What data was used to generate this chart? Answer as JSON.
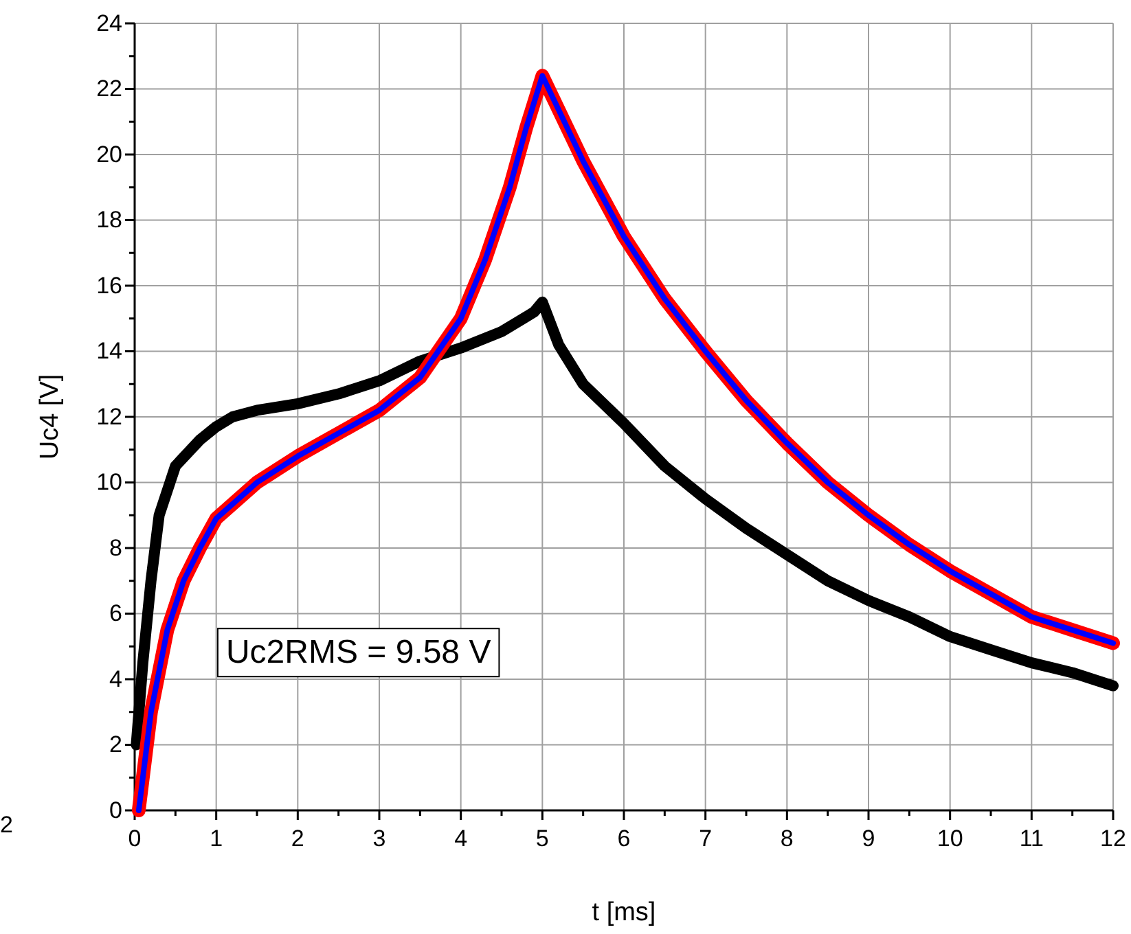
{
  "chart_data": {
    "type": "line",
    "xlabel": "t [ms]",
    "ylabel": "Uc4 [V]",
    "annotations": [
      "Uc2RMS = 9.58 V",
      "2"
    ],
    "xlim": [
      0,
      12
    ],
    "ylim": [
      0,
      24
    ],
    "xticks": [
      0,
      {
        "value": 0.5,
        "label": null
      },
      1,
      {
        "value": 1.5,
        "label": null
      },
      2,
      {
        "value": 2.5,
        "label": null
      },
      3,
      {
        "value": 3.5,
        "label": null
      },
      4,
      {
        "value": 4.5,
        "label": null
      },
      5,
      {
        "value": 5.5,
        "label": null
      },
      6,
      {
        "value": 6.5,
        "label": null
      },
      7,
      {
        "value": 7.5,
        "label": null
      },
      8,
      {
        "value": 8.5,
        "label": null
      },
      9,
      {
        "value": 9.5,
        "label": null
      },
      10,
      {
        "value": 10.5,
        "label": null
      },
      11,
      {
        "value": 11.5,
        "label": null
      },
      12
    ],
    "yticks": [
      0,
      {
        "value": 1,
        "label": null
      },
      2,
      {
        "value": 3,
        "label": null
      },
      4,
      {
        "value": 5,
        "label": null
      },
      6,
      {
        "value": 7,
        "label": null
      },
      8,
      {
        "value": 9,
        "label": null
      },
      10,
      {
        "value": 11,
        "label": null
      },
      12,
      {
        "value": 13,
        "label": null
      },
      14,
      {
        "value": 15,
        "label": null
      },
      16,
      {
        "value": 17,
        "label": null
      },
      18,
      {
        "value": 19,
        "label": null
      },
      20,
      {
        "value": 21,
        "label": null
      },
      22,
      {
        "value": 23,
        "label": null
      },
      24
    ],
    "grid": true,
    "marker": "none",
    "line_style": "solid",
    "series": [
      {
        "color": "#000000",
        "x": [
          0.02,
          0.1,
          0.2,
          0.3,
          0.5,
          0.8,
          1,
          1.2,
          1.5,
          2,
          2.5,
          3,
          3.5,
          4,
          4.5,
          4.9,
          5,
          5.2,
          5.5,
          6,
          6.5,
          7,
          7.5,
          8,
          8.5,
          9,
          9.5,
          10,
          10.5,
          11,
          11.5,
          12
        ],
        "values": [
          2,
          4.5,
          7,
          9,
          10.5,
          11.3,
          11.7,
          12,
          12.2,
          12.4,
          12.7,
          13.1,
          13.7,
          14.1,
          14.6,
          15.2,
          15.5,
          14.2,
          13,
          11.8,
          10.5,
          9.5,
          8.6,
          7.8,
          7,
          6.4,
          5.9,
          5.3,
          4.9,
          4.5,
          4.2,
          3.8
        ]
      },
      {
        "color": "#ff0000",
        "x": [
          0.05,
          0.2,
          0.4,
          0.6,
          0.8,
          1,
          1.5,
          2,
          2.5,
          3,
          3.5,
          4,
          4.3,
          4.6,
          4.8,
          5,
          5.5,
          6,
          6.5,
          7,
          7.5,
          8,
          8.5,
          9,
          9.5,
          10,
          10.5,
          11,
          11.5,
          12
        ],
        "values": [
          0,
          3,
          5.5,
          7,
          8,
          8.9,
          10,
          10.8,
          11.5,
          12.2,
          13.2,
          15,
          16.8,
          19,
          20.8,
          22.4,
          19.8,
          17.5,
          15.6,
          14,
          12.5,
          11.2,
          10,
          9,
          8.1,
          7.3,
          6.6,
          5.9,
          5.5,
          5.1
        ]
      },
      {
        "color": "#0000ff",
        "x": [
          0.05,
          0.2,
          0.4,
          0.6,
          0.8,
          1,
          1.5,
          2,
          2.5,
          3,
          3.5,
          4,
          4.3,
          4.6,
          4.8,
          5,
          5.5,
          6,
          6.5,
          7,
          7.5,
          8,
          8.5,
          9,
          9.5,
          10,
          10.5,
          11,
          11.5,
          12
        ],
        "values": [
          0,
          3,
          5.5,
          7,
          8,
          8.9,
          10,
          10.8,
          11.5,
          12.2,
          13.2,
          15,
          16.8,
          19,
          20.8,
          22.4,
          19.8,
          17.5,
          15.6,
          14,
          12.5,
          11.2,
          10,
          9,
          8.1,
          7.3,
          6.6,
          5.9,
          5.5,
          5.1
        ]
      }
    ]
  }
}
